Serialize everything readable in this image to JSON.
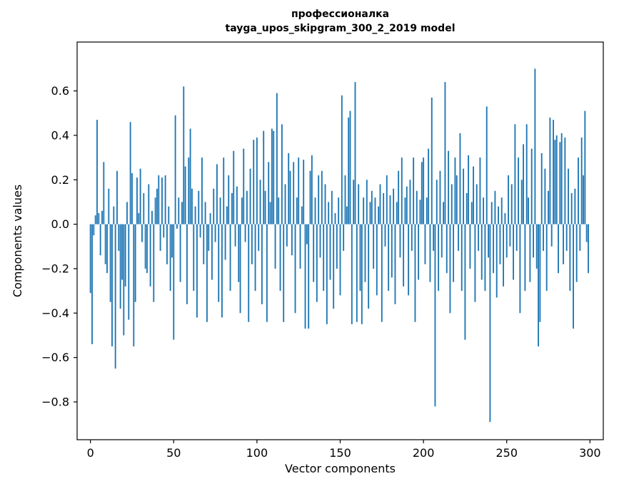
{
  "figure": {
    "background": "#ffffff",
    "bar_color": "#1f77b4",
    "spine_color": "#000000"
  },
  "chart_data": {
    "type": "bar",
    "title": "профессионалка",
    "subtitle": "tayga_upos_skipgram_300_2_2019 model",
    "xlabel": "Vector components",
    "ylabel": "Components values",
    "xlim": [
      -8,
      308
    ],
    "ylim": [
      -0.97,
      0.82
    ],
    "xticks": [
      0,
      50,
      100,
      150,
      200,
      250,
      300
    ],
    "yticks": [
      -0.8,
      -0.6,
      -0.4,
      -0.2,
      0.0,
      0.2,
      0.4,
      0.6
    ],
    "ytick_labels": [
      "−0.8",
      "−0.6",
      "−0.4",
      "−0.2",
      "0.0",
      "0.2",
      "0.4",
      "0.6"
    ],
    "xtick_labels": [
      "0",
      "50",
      "100",
      "150",
      "200",
      "250",
      "300"
    ],
    "grid": false,
    "legend": null,
    "x": "index 0..299",
    "values": [
      -0.31,
      -0.54,
      -0.05,
      0.04,
      0.47,
      0.05,
      -0.14,
      0.06,
      0.28,
      -0.18,
      -0.22,
      0.16,
      -0.35,
      -0.55,
      0.08,
      -0.65,
      0.24,
      -0.12,
      -0.38,
      -0.25,
      -0.5,
      -0.28,
      0.1,
      -0.43,
      0.46,
      0.23,
      -0.55,
      -0.35,
      0.21,
      0.05,
      0.25,
      -0.08,
      0.14,
      -0.2,
      -0.22,
      0.18,
      -0.28,
      0.06,
      -0.35,
      0.12,
      0.16,
      0.22,
      -0.12,
      0.21,
      -0.06,
      0.22,
      -0.18,
      0.08,
      -0.3,
      -0.15,
      -0.52,
      0.49,
      -0.02,
      0.12,
      -0.26,
      0.1,
      0.62,
      0.26,
      -0.36,
      0.3,
      0.43,
      0.16,
      -0.3,
      0.08,
      -0.42,
      0.15,
      -0.06,
      0.3,
      -0.18,
      0.1,
      -0.44,
      -0.12,
      0.05,
      -0.25,
      0.16,
      -0.08,
      0.27,
      -0.35,
      0.12,
      -0.42,
      0.3,
      -0.16,
      0.08,
      0.22,
      -0.3,
      0.14,
      0.33,
      -0.1,
      0.17,
      -0.26,
      -0.4,
      0.12,
      0.34,
      -0.08,
      0.15,
      -0.44,
      0.25,
      -0.18,
      0.38,
      -0.3,
      0.39,
      -0.12,
      0.2,
      -0.36,
      0.42,
      0.15,
      -0.44,
      0.28,
      0.1,
      0.43,
      0.42,
      -0.2,
      0.59,
      0.12,
      -0.3,
      0.45,
      -0.44,
      0.18,
      -0.1,
      0.32,
      0.24,
      -0.14,
      0.28,
      -0.4,
      0.12,
      0.3,
      -0.2,
      0.08,
      0.29,
      -0.47,
      -0.09,
      -0.47,
      0.24,
      0.31,
      -0.26,
      0.12,
      -0.35,
      0.22,
      -0.15,
      0.24,
      -0.3,
      0.18,
      -0.45,
      0.1,
      -0.25,
      0.15,
      -0.38,
      0.05,
      -0.2,
      0.12,
      -0.32,
      0.58,
      -0.12,
      0.22,
      0.08,
      0.48,
      0.51,
      -0.45,
      0.2,
      0.64,
      -0.44,
      0.18,
      -0.3,
      -0.45,
      0.12,
      -0.26,
      0.2,
      -0.38,
      0.1,
      0.15,
      -0.2,
      0.12,
      -0.32,
      0.08,
      0.18,
      -0.44,
      0.14,
      -0.1,
      0.22,
      -0.3,
      0.13,
      -0.24,
      0.16,
      -0.36,
      0.1,
      0.24,
      -0.15,
      0.3,
      -0.28,
      0.12,
      0.17,
      -0.32,
      0.2,
      -0.12,
      0.3,
      -0.44,
      0.15,
      -0.25,
      0.11,
      0.28,
      0.3,
      -0.18,
      0.12,
      0.34,
      -0.26,
      0.57,
      -0.12,
      -0.82,
      0.2,
      -0.3,
      0.24,
      -0.15,
      0.1,
      0.64,
      -0.22,
      0.33,
      -0.4,
      0.18,
      -0.26,
      0.3,
      0.22,
      -0.12,
      0.41,
      -0.3,
      0.25,
      -0.52,
      0.14,
      0.31,
      -0.2,
      0.1,
      0.26,
      -0.35,
      0.18,
      -0.12,
      0.3,
      -0.25,
      0.12,
      -0.3,
      0.53,
      -0.15,
      -0.89,
      0.1,
      -0.22,
      0.15,
      -0.33,
      0.08,
      -0.18,
      0.12,
      -0.28,
      0.05,
      -0.15,
      0.22,
      -0.1,
      0.18,
      -0.25,
      0.45,
      -0.12,
      0.3,
      -0.4,
      0.2,
      0.36,
      -0.3,
      0.45,
      0.12,
      -0.26,
      0.34,
      -0.15,
      0.7,
      -0.2,
      -0.55,
      -0.44,
      0.32,
      -0.12,
      0.25,
      -0.3,
      0.15,
      0.48,
      -0.1,
      0.47,
      0.38,
      0.4,
      -0.22,
      0.37,
      0.41,
      -0.18,
      0.39,
      -0.12,
      0.25,
      -0.3,
      0.14,
      -0.47,
      0.16,
      -0.26,
      0.3,
      -0.12,
      0.39,
      0.22,
      0.51,
      -0.08,
      -0.22
    ]
  }
}
